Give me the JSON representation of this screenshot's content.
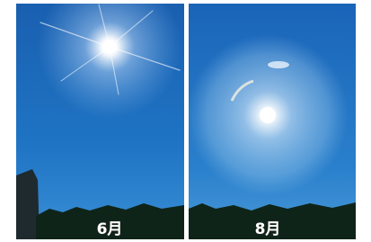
{
  "panels": [
    {
      "label": "6月"
    },
    {
      "label": "8月"
    }
  ]
}
